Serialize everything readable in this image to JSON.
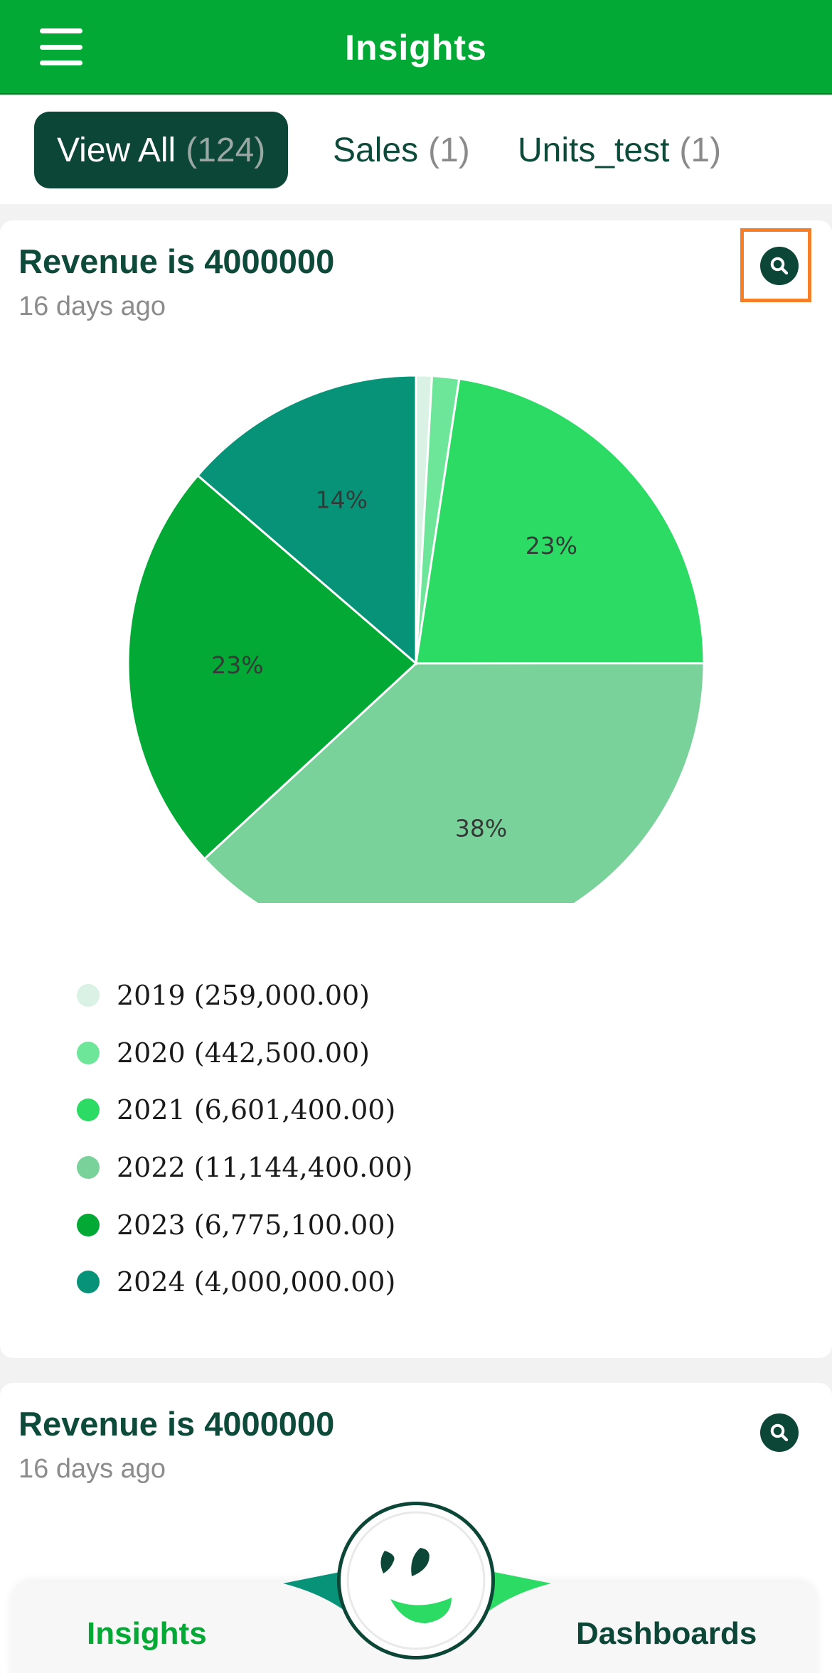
{
  "header": {
    "title": "Insights"
  },
  "tabs": [
    {
      "label": "View All",
      "count": "(124)",
      "active": true
    },
    {
      "label": "Sales",
      "count": "(1)",
      "active": false
    },
    {
      "label": "Units_test",
      "count": "(1)",
      "active": false
    }
  ],
  "cards": [
    {
      "title": "Revenue is 4000000",
      "subtitle": "16 days ago",
      "action_icon": "search-icon"
    },
    {
      "title": "Revenue is 4000000",
      "subtitle": "16 days ago",
      "action_icon": "search-icon"
    }
  ],
  "chart_data": {
    "type": "pie",
    "title": "",
    "slices": [
      {
        "label": "2019 (259,000.00)",
        "value": 259000.0,
        "color": "#daf2e5",
        "pct_label": ""
      },
      {
        "label": "2020 (442,500.00)",
        "value": 442500.0,
        "color": "#6ee69a",
        "pct_label": ""
      },
      {
        "label": "2021 (6,601,400.00)",
        "value": 6601400.0,
        "color": "#2bdb63",
        "pct_label": "23%"
      },
      {
        "label": "2022 (11,144,400.00)",
        "value": 11144400.0,
        "color": "#79d299",
        "pct_label": "38%"
      },
      {
        "label": "2023 (6,775,100.00)",
        "value": 6775100.0,
        "color": "#02a935",
        "pct_label": "23%"
      },
      {
        "label": "2024 (4,000,000.00)",
        "value": 4000000.0,
        "color": "#079377",
        "pct_label": "14%"
      }
    ],
    "legend_position": "bottom-left"
  },
  "bottom_nav": {
    "left_label": "Insights",
    "right_label": "Dashboards",
    "center_icon": "smiley-logo-icon",
    "colors": {
      "active": "#02a935",
      "inactive": "#0b4636"
    }
  },
  "theme": {
    "primary": "#02a935",
    "dark": "#0b4636",
    "highlight": "#f47f28"
  }
}
